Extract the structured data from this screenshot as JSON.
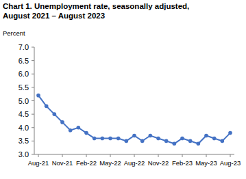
{
  "chart_data": {
    "type": "line",
    "title": "Chart 1. Unemployment rate, seasonally adjusted,",
    "subtitle": "August 2021 – August 2023",
    "y_label": "Percent",
    "categories": [
      "Aug-21",
      null,
      null,
      "Nov-21",
      null,
      null,
      "Feb-22",
      null,
      null,
      "May-22",
      null,
      null,
      "Aug-22",
      null,
      null,
      "Nov-22",
      null,
      null,
      "Feb-23",
      null,
      null,
      "May-23",
      null,
      null,
      "Aug-23"
    ],
    "values": [
      5.2,
      4.8,
      4.5,
      4.2,
      3.9,
      4.0,
      3.8,
      3.6,
      3.6,
      3.6,
      3.6,
      3.5,
      3.7,
      3.5,
      3.7,
      3.6,
      3.5,
      3.4,
      3.6,
      3.5,
      3.4,
      3.7,
      3.6,
      3.5,
      3.8
    ],
    "color": "#4472c4",
    "marker": "circle",
    "ylim": [
      3,
      7
    ],
    "yticks": [
      {
        "value": 3,
        "label": "3.0"
      },
      3.5,
      {
        "value": 4,
        "label": "4.0"
      },
      4.5,
      {
        "value": 5,
        "label": "5.0"
      },
      5.5,
      {
        "value": 6,
        "label": "6.0"
      },
      6.5,
      {
        "value": 7,
        "label": "7.0"
      }
    ],
    "grid": false
  }
}
